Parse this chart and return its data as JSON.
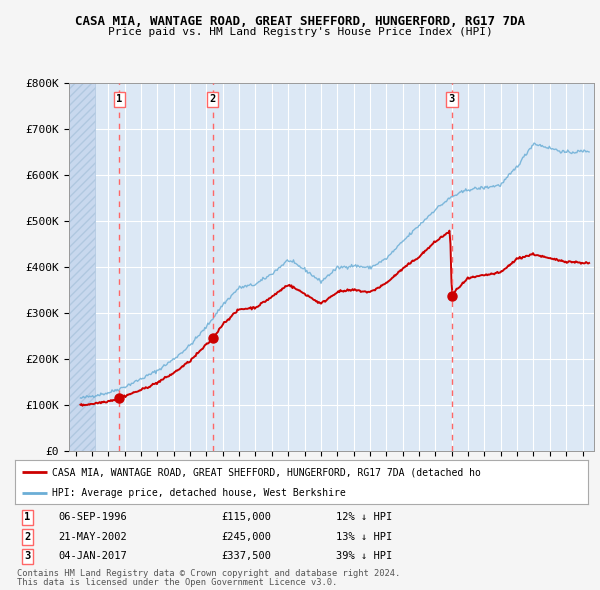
{
  "title": "CASA MIA, WANTAGE ROAD, GREAT SHEFFORD, HUNGERFORD, RG17 7DA",
  "subtitle": "Price paid vs. HM Land Registry's House Price Index (HPI)",
  "ylim": [
    0,
    800000
  ],
  "xlim_start": 1993.6,
  "xlim_end": 2025.7,
  "yticks": [
    0,
    100000,
    200000,
    300000,
    400000,
    500000,
    600000,
    700000,
    800000
  ],
  "ytick_labels": [
    "£0",
    "£100K",
    "£200K",
    "£300K",
    "£400K",
    "£500K",
    "£600K",
    "£700K",
    "£800K"
  ],
  "background_color": "#f5f5f5",
  "plot_bg_color": "#dce8f5",
  "sale_dates_decimal": [
    1996.685,
    2002.388,
    2017.01
  ],
  "sale_prices": [
    115000,
    245000,
    337500
  ],
  "sale_labels": [
    "1",
    "2",
    "3"
  ],
  "sale_date_strs": [
    "06-SEP-1996",
    "21-MAY-2002",
    "04-JAN-2017"
  ],
  "sale_price_strs": [
    "£115,000",
    "£245,000",
    "£337,500"
  ],
  "sale_hpi_strs": [
    "12% ↓ HPI",
    "13% ↓ HPI",
    "39% ↓ HPI"
  ],
  "legend_label_red": "CASA MIA, WANTAGE ROAD, GREAT SHEFFORD, HUNGERFORD, RG17 7DA (detached ho",
  "legend_label_blue": "HPI: Average price, detached house, West Berkshire",
  "footer_line1": "Contains HM Land Registry data © Crown copyright and database right 2024.",
  "footer_line2": "This data is licensed under the Open Government Licence v3.0.",
  "red_color": "#cc0000",
  "blue_color": "#6baed6",
  "dashed_color": "#ff6666",
  "hatch_end": 1995.2
}
